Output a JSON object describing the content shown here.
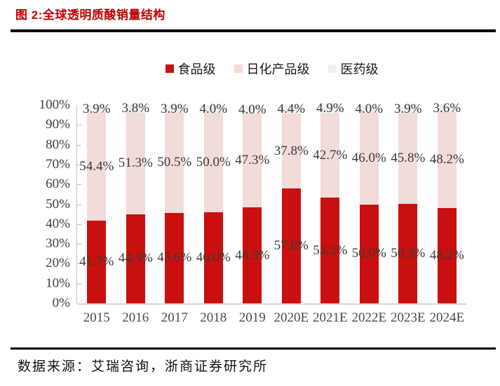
{
  "figure": {
    "title": "图 2:全球透明质酸销量结构",
    "source": "数据来源：艾瑞咨询，浙商证券研究所"
  },
  "colors": {
    "title_red": "#C00000",
    "food_grade_red": "#C9100E",
    "daily_chemical_pink": "#F1DCDA",
    "pharma_light_gray": "#F2F0ED",
    "axis_gray": "#C6C6C6",
    "label_gray": "#3A3A3A"
  },
  "chart_data": {
    "type": "bar",
    "stacked": true,
    "title": "全球透明质酸销量结构",
    "categories": [
      "2015",
      "2016",
      "2017",
      "2018",
      "2019",
      "2020E",
      "2021E",
      "2022E",
      "2023E",
      "2024E"
    ],
    "series": [
      {
        "name": "食品级",
        "color": "#C9100E",
        "values": [
          41.7,
          44.9,
          45.6,
          46.0,
          48.3,
          57.8,
          53.2,
          50.0,
          50.3,
          48.2
        ]
      },
      {
        "name": "日化产品级",
        "color": "#F1DCDA",
        "values": [
          54.4,
          51.3,
          50.5,
          50.0,
          47.3,
          37.8,
          42.7,
          46.0,
          45.8,
          48.2
        ]
      },
      {
        "name": "医药级",
        "color": "#F2F0ED",
        "values": [
          3.9,
          3.8,
          3.9,
          4.0,
          4.0,
          4.4,
          4.9,
          4.0,
          3.9,
          3.6
        ]
      }
    ],
    "value_suffix": "%",
    "y_ticks": [
      "0%",
      "10%",
      "20%",
      "30%",
      "40%",
      "50%",
      "60%",
      "70%",
      "80%",
      "90%",
      "100%"
    ],
    "ylim": [
      0,
      100
    ],
    "grid": false,
    "legend_position": "top",
    "value_labels": "inside-center"
  }
}
